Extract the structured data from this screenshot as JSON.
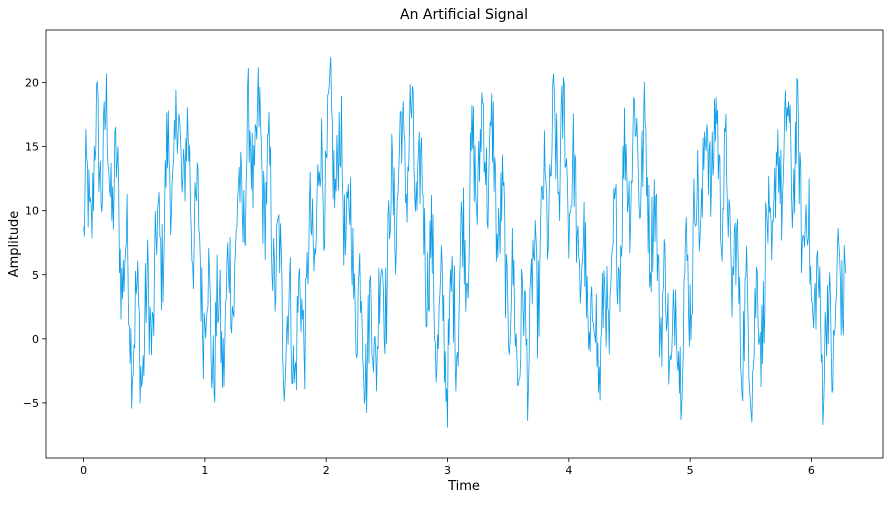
{
  "chart_data": {
    "type": "line",
    "title": "An Artificial Signal",
    "xlabel": "Time",
    "ylabel": "Amplitude",
    "xlim": [
      -0.31,
      6.59
    ],
    "ylim": [
      -9.3,
      24.1
    ],
    "xticks": [
      0,
      1,
      2,
      3,
      4,
      5,
      6
    ],
    "yticks": [
      -5,
      0,
      5,
      10,
      15,
      20
    ],
    "grid": false,
    "legend": "none",
    "line_color": "#0b9de8",
    "signal": {
      "x_start": 0,
      "x_end": 6.283,
      "points": 1000,
      "offset": 7.5,
      "components": [
        {
          "amplitude": 7.5,
          "periods_over_range": 10
        },
        {
          "amplitude": 3.5,
          "periods_over_range": 75
        }
      ],
      "noise_amplitude": 4.0,
      "y_min_observed": -7.7,
      "y_max_observed": 22.6
    }
  }
}
